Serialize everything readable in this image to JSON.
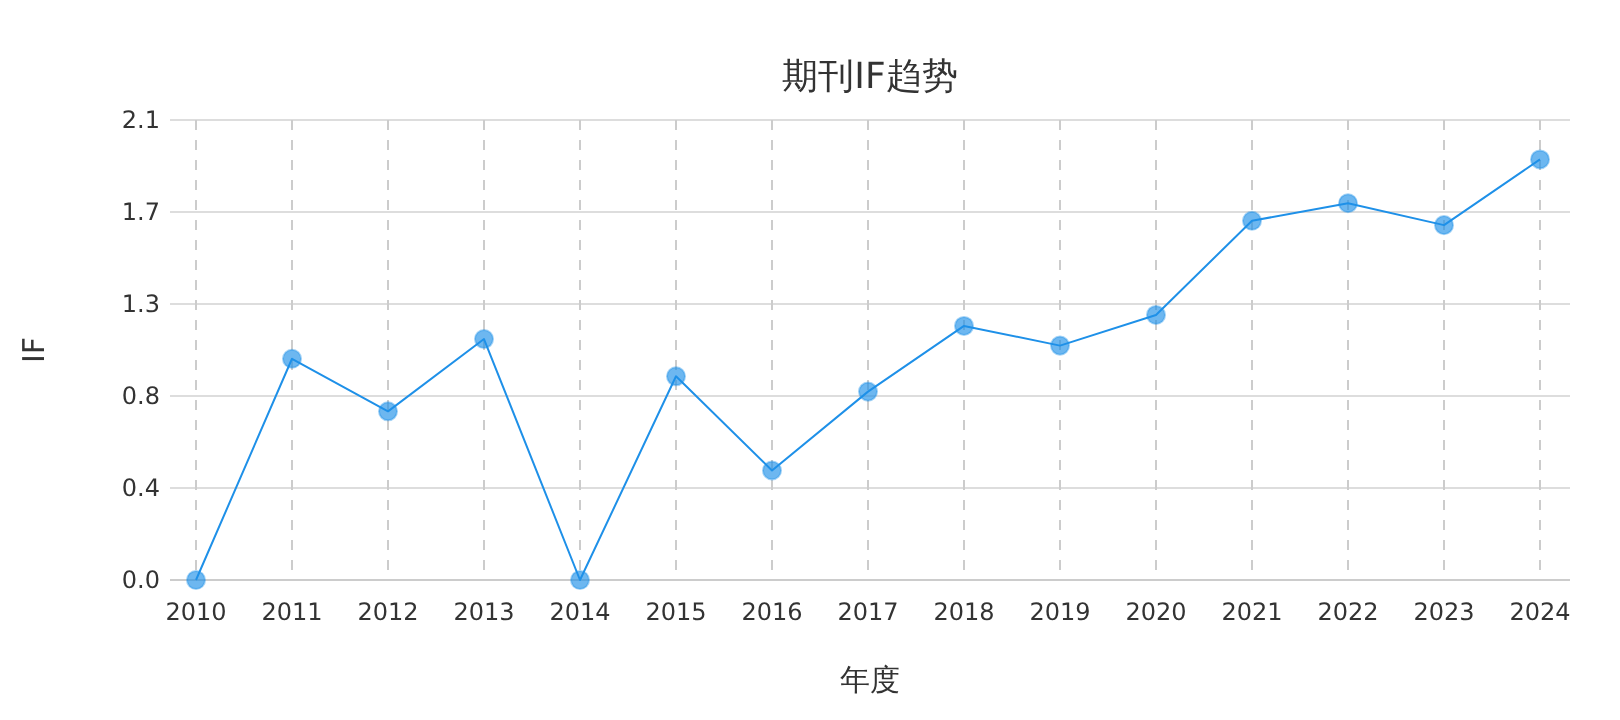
{
  "chart_data": {
    "type": "line",
    "title": "期刊IF趋势",
    "xlabel": "年度",
    "ylabel": "IF",
    "categories": [
      "2010",
      "2011",
      "2012",
      "2013",
      "2014",
      "2015",
      "2016",
      "2017",
      "2018",
      "2019",
      "2020",
      "2021",
      "2022",
      "2023",
      "2024"
    ],
    "series": [
      {
        "color": "#1e90e8",
        "values": [
          0,
          1.01,
          0.77,
          1.1,
          0,
          0.93,
          0.5,
          0.86,
          1.16,
          1.07,
          1.21,
          1.64,
          1.72,
          1.62,
          1.92
        ]
      }
    ],
    "ylim": [
      0,
      2.1
    ],
    "yticks": [
      {
        "value": 0,
        "label": "0.0"
      },
      {
        "value": 0.42,
        "label": "0.4"
      },
      {
        "value": 0.84,
        "label": "0.8"
      },
      {
        "value": 1.26,
        "label": "1.3"
      },
      {
        "value": 1.68,
        "label": "1.7"
      },
      {
        "value": 2.1,
        "label": "2.1"
      }
    ],
    "grid": true,
    "marker": "circle",
    "line_style": "solid"
  }
}
